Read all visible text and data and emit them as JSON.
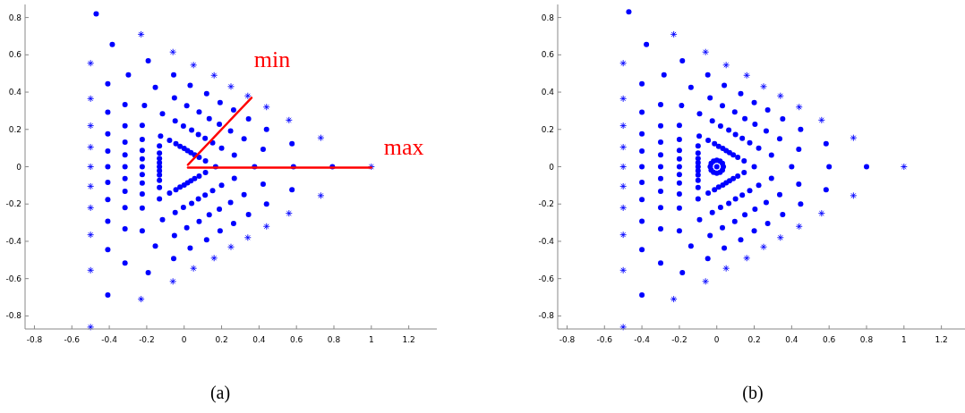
{
  "chart_data": [
    {
      "type": "scatter",
      "title": "(a)",
      "xlim": [
        -0.85,
        1.35
      ],
      "ylim": [
        -0.87,
        0.87
      ],
      "xticks": [
        -0.8,
        -0.6,
        -0.4,
        -0.2,
        0,
        0.2,
        0.4,
        0.6,
        0.8,
        1,
        1.2
      ],
      "yticks": [
        -0.8,
        -0.6,
        -0.4,
        -0.2,
        0,
        0.2,
        0.4,
        0.6,
        0.8
      ],
      "grid": false,
      "annotations": [
        "min",
        "max"
      ],
      "series": [
        {
          "marker": "circle",
          "color": "#0000ff",
          "x": [
            0.168,
            0.376,
            0.584,
            0.792,
            0.114,
            0.268,
            0.422,
            0.576,
            0.08,
            0.2,
            0.32,
            0.44,
            0.056,
            0.152,
            0.248,
            0.344,
            0.036,
            0.112,
            0.188,
            0.264,
            0.018,
            0.076,
            0.134,
            0.192,
            0,
            0.04,
            0.08,
            0.12,
            -0.022,
            -0.004,
            0.014,
            0.032,
            -0.044,
            -0.048,
            -0.052,
            -0.056,
            -0.078,
            -0.116,
            -0.154,
            -0.192,
            -0.126,
            -0.212,
            -0.298,
            -0.384,
            -0.132,
            -0.224,
            -0.316,
            -0.408,
            -0.132,
            -0.224,
            -0.316,
            -0.408,
            -0.132,
            -0.224,
            -0.316,
            -0.408,
            -0.132,
            -0.224,
            -0.316,
            -0.408,
            -0.132,
            -0.224,
            -0.316,
            -0.408,
            -0.132,
            -0.224,
            -0.316,
            -0.408,
            -0.132,
            -0.224,
            -0.316,
            -0.408,
            -0.132,
            -0.224,
            -0.316,
            -0.408,
            -0.132,
            -0.224,
            -0.316,
            -0.408,
            -0.132,
            -0.224,
            -0.316,
            -0.408,
            -0.078,
            -0.116,
            -0.154,
            -0.192,
            -0.044,
            -0.048,
            -0.052,
            -0.056,
            -0.022,
            -0.004,
            0.014,
            0.032,
            0,
            0.04,
            0.08,
            0.12,
            0.018,
            0.076,
            0.134,
            0.192,
            0.036,
            0.112,
            0.188,
            0.264,
            0.056,
            0.152,
            0.248,
            0.344,
            0.08,
            0.2,
            0.32,
            0.44,
            0.114,
            0.268,
            0.422,
            0.576,
            -0.47
          ],
          "values": [
            0,
            0,
            0,
            0,
            0.031,
            0.062,
            0.093,
            0.124,
            0.05,
            0.1,
            0.15,
            0.2,
            0.064,
            0.128,
            0.192,
            0.256,
            0.076,
            0.152,
            0.228,
            0.304,
            0.086,
            0.172,
            0.258,
            0.344,
            0.098,
            0.196,
            0.294,
            0.392,
            0.109,
            0.218,
            0.327,
            0.436,
            0.123,
            0.246,
            0.369,
            0.492,
            0.142,
            0.284,
            0.426,
            0.568,
            0.164,
            0.328,
            0.492,
            0.656,
            0.111,
            0.222,
            0.333,
            0.444,
            0.073,
            0.146,
            0.219,
            0.292,
            0.044,
            0.088,
            0.132,
            0.176,
            0.021,
            0.042,
            0.063,
            0.084,
            0,
            0,
            0,
            0,
            -0.021,
            -0.042,
            -0.063,
            -0.084,
            -0.044,
            -0.088,
            -0.132,
            -0.176,
            -0.073,
            -0.146,
            -0.219,
            -0.292,
            -0.111,
            -0.222,
            -0.333,
            -0.444,
            -0.172,
            -0.344,
            -0.516,
            -0.688,
            -0.142,
            -0.284,
            -0.426,
            -0.568,
            -0.123,
            -0.246,
            -0.369,
            -0.492,
            -0.109,
            -0.218,
            -0.327,
            -0.436,
            -0.098,
            -0.196,
            -0.294,
            -0.392,
            -0.086,
            -0.172,
            -0.258,
            -0.344,
            -0.076,
            -0.152,
            -0.228,
            -0.304,
            -0.064,
            -0.128,
            -0.192,
            -0.256,
            -0.05,
            -0.1,
            -0.15,
            -0.2,
            -0.031,
            -0.062,
            -0.093,
            -0.124,
            0.82
          ]
        },
        {
          "marker": "cross",
          "color": "#0000ff",
          "x": [
            1,
            0.73,
            0.56,
            0.44,
            0.34,
            0.25,
            0.16,
            0.05,
            -0.06,
            -0.23,
            -0.5,
            -0.5,
            -0.5,
            -0.5,
            -0.5,
            -0.5,
            -0.5,
            -0.5,
            -0.5,
            -0.5,
            -0.23,
            -0.06,
            0.05,
            0.16,
            0.25,
            0.34,
            0.44,
            0.56,
            0.73
          ],
          "values": [
            0,
            0.155,
            0.25,
            0.32,
            0.38,
            0.43,
            0.49,
            0.545,
            0.615,
            0.71,
            0.555,
            0.365,
            0.22,
            0.105,
            0,
            -0.105,
            -0.22,
            -0.365,
            -0.555,
            -0.86,
            -0.71,
            -0.615,
            -0.545,
            -0.49,
            -0.43,
            -0.38,
            -0.32,
            -0.25,
            -0.155
          ]
        },
        {
          "type": "line",
          "marker": "none",
          "line_style": "solid",
          "color": "#ff0000",
          "x": [
            0.02,
            0.36
          ],
          "values": [
            0.01,
            0.37
          ]
        },
        {
          "type": "line",
          "marker": "none",
          "line_style": "solid",
          "color": "#ff0000",
          "x": [
            0.02,
            1
          ],
          "values": [
            -0.005,
            -0.005
          ]
        }
      ]
    },
    {
      "type": "scatter",
      "title": "(b)",
      "xlim": [
        -0.85,
        1.35
      ],
      "ylim": [
        -0.87,
        0.87
      ],
      "xticks": [
        -0.8,
        -0.6,
        -0.4,
        -0.2,
        0,
        0.2,
        0.4,
        0.6,
        0.8,
        1,
        1.2
      ],
      "yticks": [
        -0.8,
        -0.6,
        -0.4,
        -0.2,
        0,
        0.2,
        0.4,
        0.6,
        0.8
      ],
      "grid": false,
      "series": [
        {
          "marker": "circle",
          "color": "#0000ff",
          "x": [
            0.2,
            0.4,
            0.6,
            0.8,
            0.146,
            0.292,
            0.438,
            0.584,
            0.112,
            0.224,
            0.336,
            0.448,
            0.088,
            0.176,
            0.264,
            0.352,
            0.068,
            0.136,
            0.204,
            0.272,
            0.05,
            0.1,
            0.15,
            0.2,
            0.032,
            0.064,
            0.096,
            0.128,
            0.01,
            0.02,
            0.03,
            0.04,
            -0.012,
            -0.024,
            -0.036,
            -0.048,
            -0.046,
            -0.092,
            -0.138,
            -0.184,
            -0.094,
            -0.188,
            -0.282,
            -0.376,
            -0.1,
            -0.2,
            -0.3,
            -0.4,
            -0.1,
            -0.2,
            -0.3,
            -0.4,
            -0.1,
            -0.2,
            -0.3,
            -0.4,
            -0.1,
            -0.2,
            -0.3,
            -0.4,
            -0.1,
            -0.2,
            -0.3,
            -0.4,
            -0.1,
            -0.2,
            -0.3,
            -0.4,
            -0.1,
            -0.2,
            -0.3,
            -0.4,
            -0.1,
            -0.2,
            -0.3,
            -0.4,
            -0.1,
            -0.2,
            -0.3,
            -0.4,
            -0.1,
            -0.2,
            -0.3,
            -0.4,
            -0.046,
            -0.092,
            -0.138,
            -0.184,
            -0.012,
            -0.024,
            -0.036,
            -0.048,
            0.01,
            0.02,
            0.03,
            0.04,
            0.032,
            0.064,
            0.096,
            0.128,
            0.05,
            0.1,
            0.15,
            0.2,
            0.068,
            0.136,
            0.204,
            0.272,
            0.088,
            0.176,
            0.264,
            0.352,
            0.112,
            0.224,
            0.336,
            0.448,
            0.146,
            0.292,
            0.438,
            0.584,
            -0.47,
            0
          ],
          "values": [
            0,
            0,
            0,
            0,
            0.031,
            0.062,
            0.093,
            0.124,
            0.05,
            0.1,
            0.15,
            0.2,
            0.064,
            0.128,
            0.192,
            0.256,
            0.076,
            0.152,
            0.228,
            0.304,
            0.086,
            0.172,
            0.258,
            0.344,
            0.098,
            0.196,
            0.294,
            0.392,
            0.109,
            0.218,
            0.327,
            0.436,
            0.123,
            0.246,
            0.369,
            0.492,
            0.142,
            0.284,
            0.426,
            0.568,
            0.164,
            0.328,
            0.492,
            0.656,
            0.111,
            0.222,
            0.333,
            0.444,
            0.073,
            0.146,
            0.219,
            0.292,
            0.044,
            0.088,
            0.132,
            0.176,
            0.021,
            0.042,
            0.063,
            0.084,
            0,
            0,
            0,
            0,
            -0.021,
            -0.042,
            -0.063,
            -0.084,
            -0.044,
            -0.088,
            -0.132,
            -0.176,
            -0.073,
            -0.146,
            -0.219,
            -0.292,
            -0.111,
            -0.222,
            -0.333,
            -0.444,
            -0.172,
            -0.344,
            -0.516,
            -0.688,
            -0.142,
            -0.284,
            -0.426,
            -0.568,
            -0.123,
            -0.246,
            -0.369,
            -0.492,
            -0.109,
            -0.218,
            -0.327,
            -0.436,
            -0.098,
            -0.196,
            -0.294,
            -0.392,
            -0.086,
            -0.172,
            -0.258,
            -0.344,
            -0.076,
            -0.152,
            -0.228,
            -0.304,
            -0.064,
            -0.128,
            -0.192,
            -0.256,
            -0.05,
            -0.1,
            -0.15,
            -0.2,
            -0.031,
            -0.062,
            -0.093,
            -0.124,
            0.83,
            0
          ]
        },
        {
          "marker": "cross",
          "color": "#0000ff",
          "x": [
            1,
            0.73,
            0.56,
            0.44,
            0.34,
            0.25,
            0.16,
            0.05,
            -0.06,
            -0.23,
            -0.5,
            -0.5,
            -0.5,
            -0.5,
            -0.5,
            -0.5,
            -0.5,
            -0.5,
            -0.5,
            -0.5,
            -0.23,
            -0.06,
            0.05,
            0.16,
            0.25,
            0.34,
            0.44,
            0.56,
            0.73
          ],
          "values": [
            0,
            0.155,
            0.25,
            0.32,
            0.38,
            0.43,
            0.49,
            0.545,
            0.615,
            0.71,
            0.555,
            0.365,
            0.22,
            0.105,
            0,
            -0.105,
            -0.22,
            -0.365,
            -0.555,
            -0.86,
            -0.71,
            -0.615,
            -0.545,
            -0.49,
            -0.43,
            -0.38,
            -0.32,
            -0.25,
            -0.155
          ]
        },
        {
          "marker": "circle",
          "color": "#0000ff",
          "x": [
            0.035,
            0.03,
            0.0175,
            0,
            -0.0175,
            -0.03,
            -0.035,
            -0.03,
            -0.0175,
            0,
            0.0175,
            0.03
          ],
          "values": [
            0,
            0.0175,
            0.03,
            0.035,
            0.03,
            0.0175,
            0,
            -0.0175,
            -0.03,
            -0.035,
            -0.03,
            -0.0175
          ]
        }
      ]
    }
  ]
}
